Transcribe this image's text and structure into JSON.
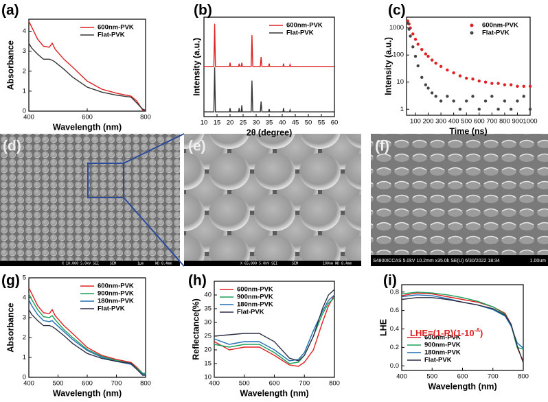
{
  "chart_data": [
    {
      "type": "line",
      "panel": "(a)",
      "xlabel": "Wavelength (nm)",
      "ylabel": "Absorbance",
      "x": [
        400,
        410,
        430,
        450,
        470,
        480,
        490,
        520,
        550,
        600,
        650,
        700,
        750,
        770,
        790,
        800
      ],
      "series": [
        {
          "name": "600nm-PVK",
          "color": "#e02020",
          "values": [
            4.5,
            4.2,
            3.6,
            3.25,
            3.2,
            3.4,
            3.1,
            2.6,
            2.2,
            1.5,
            1.1,
            0.9,
            0.75,
            0.5,
            0.05,
            0.05
          ]
        },
        {
          "name": "Flat-PVK",
          "color": "#333333",
          "values": [
            3.4,
            3.15,
            2.85,
            2.6,
            2.6,
            2.55,
            2.45,
            2.1,
            1.7,
            1.2,
            0.95,
            0.8,
            0.7,
            0.4,
            0.1,
            0.05
          ]
        }
      ],
      "xlim": [
        400,
        800
      ],
      "xticks": [
        400,
        600,
        800
      ],
      "ylim": [
        0,
        4.6
      ],
      "yticks": [
        0,
        1,
        2,
        3,
        4
      ],
      "legend": "upper right"
    },
    {
      "type": "line",
      "panel": "(b)",
      "xlabel": "2θ (degree)",
      "ylabel": "Intensity (a.u.)",
      "x": [
        10,
        13.8,
        14.1,
        14.4,
        19.8,
        20,
        20.2,
        23.3,
        23.5,
        23.7,
        24.3,
        24.5,
        24.7,
        28.1,
        28.4,
        28.7,
        31.6,
        31.9,
        32.2,
        34.8,
        35,
        35.2,
        40.3,
        40.5,
        40.7,
        42.8,
        43,
        43.2,
        60
      ],
      "series": [
        {
          "name": "600nm-PVK",
          "color": "#e02020",
          "values": [
            5.3,
            5.3,
            9.8,
            5.3,
            5.3,
            5.7,
            5.3,
            5.3,
            5.6,
            5.3,
            5.3,
            5.7,
            5.3,
            5.3,
            8.6,
            5.3,
            5.3,
            6.3,
            5.3,
            5.3,
            5.6,
            5.3,
            5.3,
            5.6,
            5.3,
            5.3,
            5.5,
            5.3,
            5.3
          ]
        },
        {
          "name": "Flat-PVK",
          "color": "#333333",
          "values": [
            0.5,
            0.5,
            5.2,
            0.5,
            0.5,
            0.9,
            0.5,
            0.5,
            0.9,
            0.5,
            0.5,
            1.2,
            0.5,
            0.5,
            3.8,
            0.5,
            0.5,
            1.6,
            0.5,
            0.5,
            0.8,
            0.5,
            0.5,
            0.9,
            0.5,
            0.5,
            0.7,
            0.5,
            0.5
          ]
        }
      ],
      "xlim": [
        10,
        60
      ],
      "xticks": [
        10,
        15,
        20,
        25,
        30,
        35,
        40,
        45,
        50,
        55,
        60
      ],
      "ylim": [
        0,
        10.5
      ],
      "legend": "upper right"
    },
    {
      "type": "scatter",
      "panel": "(c)",
      "xlabel": "Time (ns)",
      "ylabel": "Intensity (a.u.)",
      "log_y": true,
      "series": [
        {
          "name": "600nm-PVK",
          "color": "#e02020",
          "x": [
            40,
            50,
            60,
            80,
            100,
            120,
            150,
            180,
            200,
            230,
            260,
            300,
            350,
            400,
            450,
            500,
            550,
            600,
            650,
            700,
            750,
            800,
            850,
            900,
            950,
            1000
          ],
          "values": [
            1800,
            1400,
            1000,
            600,
            380,
            250,
            160,
            110,
            90,
            65,
            50,
            38,
            28,
            22,
            17,
            14,
            13,
            11,
            10,
            9,
            9,
            8,
            8,
            7,
            7,
            7
          ]
        },
        {
          "name": "Flat-PVK",
          "color": "#444444",
          "x": [
            40,
            50,
            60,
            80,
            100,
            120,
            150,
            180,
            200,
            230,
            260,
            300,
            350,
            400,
            450,
            500,
            550,
            600,
            650,
            700,
            750,
            800,
            850,
            900,
            950,
            1000
          ],
          "values": [
            1500,
            900,
            500,
            200,
            90,
            40,
            15,
            8,
            6,
            4,
            3,
            2,
            3,
            2,
            1,
            2,
            3,
            1,
            2,
            3,
            1,
            2,
            1,
            2,
            3,
            1
          ]
        }
      ],
      "xlim": [
        30,
        1000
      ],
      "xticks": [
        100,
        200,
        300,
        400,
        500,
        600,
        700,
        800,
        900,
        1000
      ],
      "ylim": [
        0.6,
        2500
      ],
      "yticks": [
        1,
        10,
        100,
        1000
      ],
      "legend": "upper right"
    },
    {
      "type": "line",
      "panel": "(g)",
      "xlabel": "Wavelength (nm)",
      "ylabel": "Absorbance",
      "x": [
        400,
        410,
        430,
        450,
        470,
        480,
        490,
        520,
        550,
        600,
        650,
        700,
        750,
        770,
        790,
        800
      ],
      "series": [
        {
          "name": "600nm-PVK",
          "color": "#e02020",
          "values": [
            4.5,
            4.2,
            3.6,
            3.25,
            3.2,
            3.4,
            3.1,
            2.6,
            2.2,
            1.5,
            1.1,
            0.9,
            0.75,
            0.5,
            0.2,
            0.2
          ]
        },
        {
          "name": "900nm-PVK",
          "color": "#1a9e5a",
          "values": [
            4.2,
            3.9,
            3.4,
            3.05,
            3.0,
            3.1,
            2.9,
            2.4,
            2.0,
            1.4,
            1.05,
            0.85,
            0.7,
            0.45,
            0.2,
            0.2
          ]
        },
        {
          "name": "180nm-PVK",
          "color": "#1f6fb4",
          "values": [
            3.9,
            3.6,
            3.15,
            2.85,
            2.8,
            2.85,
            2.7,
            2.3,
            1.9,
            1.35,
            1.0,
            0.8,
            0.65,
            0.4,
            0.15,
            0.15
          ]
        },
        {
          "name": "Flat-PVK",
          "color": "#2b2f45",
          "values": [
            3.4,
            3.15,
            2.85,
            2.6,
            2.6,
            2.55,
            2.45,
            2.1,
            1.7,
            1.2,
            0.95,
            0.8,
            0.7,
            0.4,
            0.1,
            0.1
          ]
        }
      ],
      "xlim": [
        400,
        800
      ],
      "xticks": [
        400,
        500,
        600,
        700,
        800
      ],
      "ylim": [
        0,
        5
      ],
      "yticks": [
        0,
        1,
        2,
        3,
        4,
        5
      ],
      "legend": "upper right"
    },
    {
      "type": "line",
      "panel": "(h)",
      "xlabel": "Wavelength (nm)",
      "ylabel": "Reflectance(%)",
      "x": [
        400,
        450,
        500,
        550,
        600,
        650,
        680,
        700,
        730,
        760,
        780,
        800
      ],
      "series": [
        {
          "name": "600nm-PVK",
          "color": "#e02020",
          "values": [
            23,
            20,
            21,
            21,
            18,
            14.5,
            14,
            15.5,
            20,
            30,
            36,
            40
          ]
        },
        {
          "name": "900nm-PVK",
          "color": "#1a9e5a",
          "values": [
            22,
            21,
            22,
            22,
            19,
            15,
            15.5,
            18,
            25,
            33,
            37,
            39
          ]
        },
        {
          "name": "180nm-PVK",
          "color": "#1f6fb4",
          "values": [
            24,
            22,
            23,
            23,
            20,
            16,
            16.5,
            19,
            27,
            34,
            38,
            40
          ]
        },
        {
          "name": "Flat-PVK",
          "color": "#2b2f45",
          "values": [
            25,
            25.5,
            26,
            26,
            23,
            17,
            16,
            18,
            25,
            35,
            40,
            42
          ]
        }
      ],
      "xlim": [
        400,
        800
      ],
      "xticks": [
        400,
        500,
        600,
        700,
        800
      ],
      "ylim": [
        10,
        45
      ],
      "yticks": [
        10,
        15,
        20,
        25,
        30,
        35,
        40
      ],
      "legend": "upper left"
    },
    {
      "type": "line",
      "panel": "(i)",
      "xlabel": "Wavelength (nm)",
      "ylabel": "LHE",
      "annotation": [
        "LHE=(1-R)(1-10",
        "-A",
        ")"
      ],
      "annotation_color": "#e02020",
      "x": [
        400,
        450,
        500,
        550,
        600,
        650,
        700,
        740,
        760,
        780,
        800
      ],
      "series": [
        {
          "name": "600nm-PVK",
          "color": "#e02020",
          "values": [
            0.76,
            0.79,
            0.78,
            0.75,
            0.72,
            0.69,
            0.64,
            0.57,
            0.45,
            0.2,
            0.05
          ]
        },
        {
          "name": "900nm-PVK",
          "color": "#1a9e5a",
          "values": [
            0.78,
            0.8,
            0.79,
            0.77,
            0.74,
            0.7,
            0.64,
            0.56,
            0.44,
            0.2,
            0.18
          ]
        },
        {
          "name": "180nm-PVK",
          "color": "#1f6fb4",
          "values": [
            0.75,
            0.77,
            0.76,
            0.73,
            0.69,
            0.66,
            0.61,
            0.54,
            0.43,
            0.25,
            0.19
          ]
        },
        {
          "name": "Flat-PVK",
          "color": "#2b2f45",
          "values": [
            0.72,
            0.74,
            0.74,
            0.72,
            0.69,
            0.66,
            0.62,
            0.55,
            0.45,
            0.22,
            0.03
          ]
        }
      ],
      "xlim": [
        400,
        800
      ],
      "xticks": [
        400,
        500,
        600,
        700,
        800
      ],
      "ylim": [
        -0.05,
        0.88
      ],
      "yticks": [
        {
          "value": 0,
          "label": "0.0"
        },
        0.2,
        0.4,
        0.6,
        0.8
      ],
      "legend": "lower left"
    }
  ],
  "images": [
    {
      "panel": "(d)",
      "info": "X 10,000   5.0kV   SEI",
      "detector": "SEM",
      "scale": "1μm",
      "wd": "WD 8.4mm"
    },
    {
      "panel": "(e)",
      "info": "X 65,000   5.0kV   SEI",
      "detector": "SEM",
      "scale": "100nm",
      "wd": "WD 8.4mm"
    },
    {
      "panel": "(f)",
      "info": "S4800ICCAS 5.0kV 10.2mm x35.0k SE(U) 6/30/2022 18:34",
      "scale": "1.00um"
    }
  ]
}
